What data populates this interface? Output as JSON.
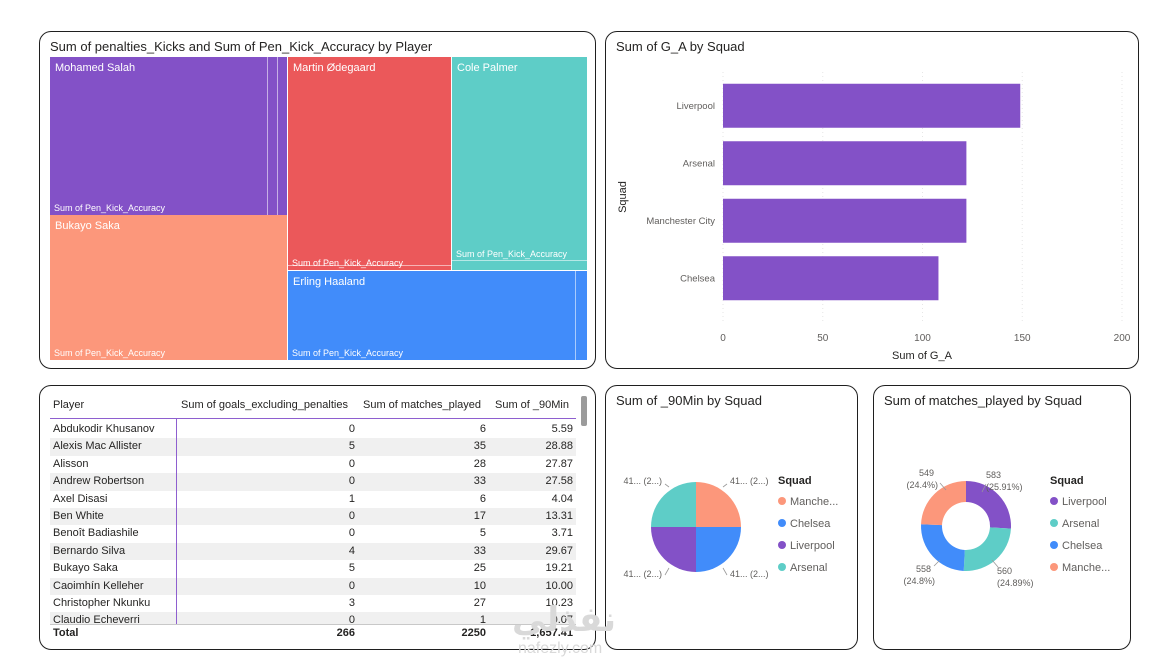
{
  "treemap": {
    "title": "Sum of penalties_Kicks and Sum of Pen_Kick_Accuracy by Player",
    "sub_label": "Sum of Pen_Kick_Accuracy",
    "players": [
      {
        "name": "Mohamed Salah",
        "color": "#8351c7"
      },
      {
        "name": "Bukayo Saka",
        "color": "#fc977b"
      },
      {
        "name": "Martin Ødegaard",
        "color": "#eb585a"
      },
      {
        "name": "Cole Palmer",
        "color": "#5ecdc7"
      },
      {
        "name": "Erling Haaland",
        "color": "#418cfa"
      }
    ]
  },
  "bar_chart": {
    "title": "Sum of G_A by Squad",
    "ylabel": "Squad",
    "xlabel": "Sum of G_A",
    "bar_color": "#8351c7"
  },
  "table": {
    "columns": [
      "Player",
      "Sum of goals_excluding_penalties",
      "Sum of matches_played",
      "Sum of _90Min"
    ],
    "rows": [
      [
        "Abdukodir Khusanov",
        "0",
        "6",
        "5.59"
      ],
      [
        "Alexis Mac Allister",
        "5",
        "35",
        "28.88"
      ],
      [
        "Alisson",
        "0",
        "28",
        "27.87"
      ],
      [
        "Andrew Robertson",
        "0",
        "33",
        "27.58"
      ],
      [
        "Axel Disasi",
        "1",
        "6",
        "4.04"
      ],
      [
        "Ben White",
        "0",
        "17",
        "13.31"
      ],
      [
        "Benoît Badiashile",
        "0",
        "5",
        "3.71"
      ],
      [
        "Bernardo Silva",
        "4",
        "33",
        "29.67"
      ],
      [
        "Bukayo Saka",
        "5",
        "25",
        "19.21"
      ],
      [
        "Caoimhín Kelleher",
        "0",
        "10",
        "10.00"
      ],
      [
        "Christopher Nkunku",
        "3",
        "27",
        "10.23"
      ],
      [
        "Claudio Echeverri",
        "0",
        "1",
        "0.07"
      ]
    ],
    "total": [
      "Total",
      "266",
      "2250",
      "1,657.41"
    ]
  },
  "pie_chart": {
    "title": "Sum of _90Min by Squad",
    "legend_title": "Squad",
    "legend": [
      {
        "label": "Manche...",
        "color": "#fc977b"
      },
      {
        "label": "Chelsea",
        "color": "#418cfa"
      },
      {
        "label": "Liverpool",
        "color": "#8351c7"
      },
      {
        "label": "Arsenal",
        "color": "#5ecdc7"
      }
    ],
    "slice_labels": [
      "41... (2...)",
      "41... (2...)",
      "41... (2...)",
      "41... (2...)"
    ]
  },
  "donut_chart": {
    "title": "Sum of matches_played by Squad",
    "legend_title": "Squad",
    "legend": [
      {
        "label": "Liverpool",
        "color": "#8351c7"
      },
      {
        "label": "Arsenal",
        "color": "#5ecdc7"
      },
      {
        "label": "Chelsea",
        "color": "#418cfa"
      },
      {
        "label": "Manche...",
        "color": "#fc977b"
      }
    ],
    "slice_labels": {
      "liverpool": {
        "value": "583",
        "pct": "(25.91%)"
      },
      "arsenal": {
        "value": "560",
        "pct": "(24.89%)"
      },
      "chelsea": {
        "value": "558",
        "pct": "(24.8%)"
      },
      "manchester": {
        "value": "549",
        "pct": "(24.4%)"
      }
    }
  },
  "watermark": {
    "arabic": "نفذلي",
    "latin": "nafezly.com"
  },
  "chart_data": [
    {
      "type": "bar",
      "orientation": "horizontal",
      "title": "Sum of G_A by Squad",
      "ylabel": "Squad",
      "xlabel": "Sum of G_A",
      "categories": [
        "Liverpool",
        "Arsenal",
        "Manchester City",
        "Chelsea"
      ],
      "values": [
        149,
        122,
        122,
        108
      ],
      "xlim": [
        0,
        200
      ],
      "xticks": [
        0,
        50,
        100,
        150,
        200
      ],
      "grid": true
    },
    {
      "type": "pie",
      "title": "Sum of _90Min by Squad",
      "categories": [
        "Manchester City",
        "Chelsea",
        "Liverpool",
        "Arsenal"
      ],
      "values": [
        25,
        25,
        25,
        25
      ]
    },
    {
      "type": "pie",
      "donut": true,
      "title": "Sum of matches_played by Squad",
      "categories": [
        "Liverpool",
        "Arsenal",
        "Chelsea",
        "Manchester City"
      ],
      "values": [
        583,
        560,
        558,
        549
      ],
      "percentages": [
        25.91,
        24.89,
        24.8,
        24.4
      ]
    }
  ]
}
